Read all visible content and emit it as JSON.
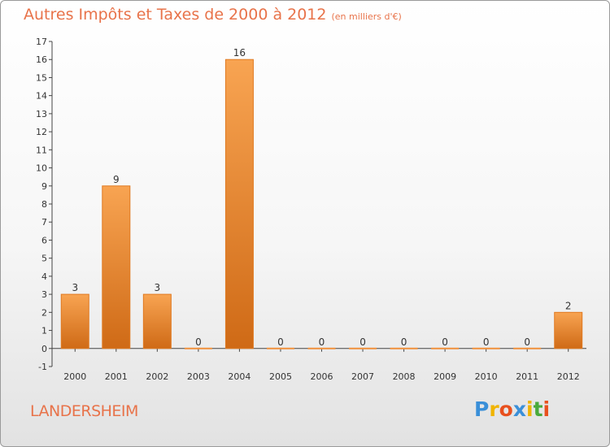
{
  "chart_data": {
    "type": "bar",
    "title": "Autres Impôts et Taxes de 2000 à 2012",
    "subtitle": "(en milliers d'€)",
    "categories": [
      "2000",
      "2001",
      "2002",
      "2003",
      "2004",
      "2005",
      "2006",
      "2007",
      "2008",
      "2009",
      "2010",
      "2011",
      "2012"
    ],
    "values": [
      3,
      9,
      3,
      0,
      16,
      0,
      0,
      0,
      0,
      0,
      0,
      0,
      2
    ],
    "ylim": [
      -1,
      17
    ],
    "yticks": [
      -1,
      0,
      1,
      2,
      3,
      4,
      5,
      6,
      7,
      8,
      9,
      10,
      11,
      12,
      13,
      14,
      15,
      16,
      17
    ],
    "bar_color": "#f0913c",
    "grid": false
  },
  "commune": "LANDERSHEIM",
  "logo": {
    "letters": [
      "P",
      "r",
      "o",
      "x",
      "i",
      "t",
      "i"
    ],
    "colors": [
      "#3a8fd8",
      "#f0b400",
      "#e8501e",
      "#3a8fd8",
      "#f0b400",
      "#4aaa3c",
      "#e8501e"
    ]
  }
}
